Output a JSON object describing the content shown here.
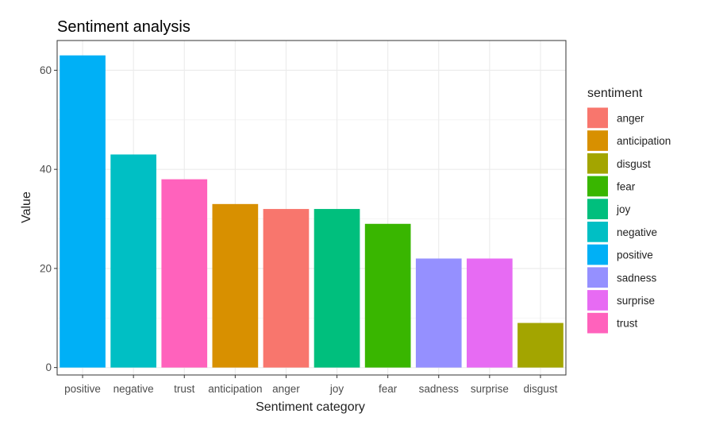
{
  "chart_data": {
    "type": "bar",
    "title": "Sentiment analysis",
    "xlabel": "Sentiment category",
    "ylabel": "Value",
    "ylim": [
      -1.5,
      66
    ],
    "yticks": [
      0,
      20,
      40,
      60
    ],
    "grid": true,
    "legend_position": "right",
    "categories": [
      "positive",
      "negative",
      "trust",
      "anticipation",
      "anger",
      "joy",
      "fear",
      "sadness",
      "surprise",
      "disgust"
    ],
    "values": [
      63,
      43,
      38,
      33,
      32,
      32,
      29,
      22,
      22,
      9
    ],
    "legend": {
      "title": "sentiment",
      "items": [
        {
          "label": "anger",
          "color": "#F8766D"
        },
        {
          "label": "anticipation",
          "color": "#D89000"
        },
        {
          "label": "disgust",
          "color": "#A3A500"
        },
        {
          "label": "fear",
          "color": "#39B600"
        },
        {
          "label": "joy",
          "color": "#00BF7D"
        },
        {
          "label": "negative",
          "color": "#00BFC4"
        },
        {
          "label": "positive",
          "color": "#00B0F6"
        },
        {
          "label": "sadness",
          "color": "#9590FF"
        },
        {
          "label": "surprise",
          "color": "#E76BF3"
        },
        {
          "label": "trust",
          "color": "#FF62BC"
        }
      ]
    }
  }
}
